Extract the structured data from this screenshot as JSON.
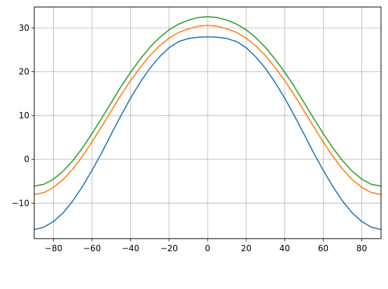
{
  "chart_data": {
    "type": "line",
    "title": "",
    "xlabel": "",
    "ylabel": "",
    "xlim": [
      -90,
      90
    ],
    "ylim": [
      -18.1,
      34.8
    ],
    "grid": true,
    "x_ticks": [
      -80,
      -60,
      -40,
      -20,
      0,
      20,
      40,
      60,
      80
    ],
    "y_ticks": [
      -10,
      0,
      10,
      20,
      30
    ],
    "x_tick_labels": [
      "−80",
      "−60",
      "−40",
      "−20",
      "0",
      "20",
      "40",
      "60",
      "80"
    ],
    "y_tick_labels": [
      "−10",
      "0",
      "10",
      "20",
      "30"
    ],
    "x": [
      -90,
      -85,
      -80,
      -75,
      -70,
      -65,
      -60,
      -55,
      -50,
      -45,
      -40,
      -35,
      -30,
      -25,
      -20,
      -15,
      -10,
      -5,
      0,
      5,
      10,
      15,
      20,
      25,
      30,
      35,
      40,
      45,
      50,
      55,
      60,
      65,
      70,
      75,
      80,
      85,
      90
    ],
    "series": [
      {
        "color": "#1f77b4",
        "values": [
          -16.0,
          -15.5,
          -14.2,
          -12.2,
          -9.5,
          -6.2,
          -2.5,
          1.5,
          5.8,
          10.0,
          14.0,
          17.6,
          20.8,
          23.4,
          25.5,
          26.9,
          27.6,
          27.9,
          28.0,
          27.9,
          27.6,
          26.9,
          25.5,
          23.4,
          20.8,
          17.6,
          14.0,
          10.0,
          5.8,
          1.5,
          -2.5,
          -6.2,
          -9.5,
          -12.2,
          -14.2,
          -15.5,
          -16.0
        ]
      },
      {
        "color": "#ff7f0e",
        "values": [
          -8.0,
          -7.6,
          -6.4,
          -4.6,
          -2.2,
          0.7,
          4.0,
          7.5,
          11.1,
          14.7,
          18.0,
          21.0,
          23.7,
          25.9,
          27.7,
          29.0,
          29.8,
          30.4,
          30.6,
          30.4,
          29.8,
          29.0,
          27.7,
          25.9,
          23.7,
          21.0,
          18.0,
          14.7,
          11.1,
          7.5,
          4.0,
          0.7,
          -2.2,
          -4.6,
          -6.4,
          -7.6,
          -8.0
        ]
      },
      {
        "color": "#2ca02c",
        "values": [
          -6.1,
          -5.7,
          -4.5,
          -2.7,
          -0.3,
          2.6,
          5.9,
          9.4,
          13.0,
          16.6,
          19.9,
          22.9,
          25.6,
          27.8,
          29.6,
          30.9,
          31.8,
          32.4,
          32.6,
          32.4,
          31.8,
          30.9,
          29.6,
          27.8,
          25.6,
          22.9,
          19.9,
          16.6,
          13.0,
          9.4,
          5.9,
          2.6,
          -0.3,
          -2.7,
          -4.5,
          -5.7,
          -6.1
        ]
      }
    ]
  }
}
